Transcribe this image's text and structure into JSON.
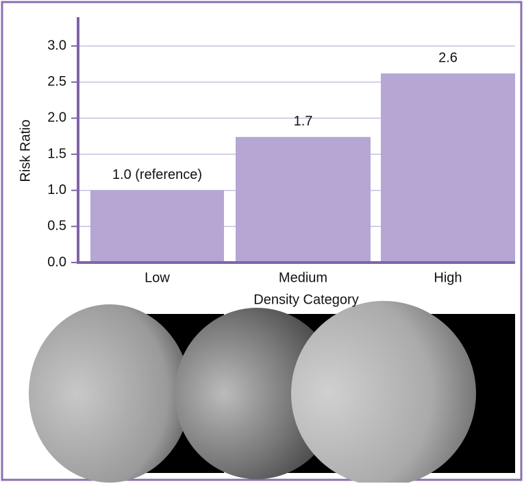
{
  "chart_data": {
    "type": "bar",
    "x_label": "Density Category",
    "y_label": "Risk Ratio",
    "categories": [
      "Low",
      "Medium",
      "High"
    ],
    "values": [
      1.0,
      1.74,
      2.62
    ],
    "value_labels": [
      "1.0 (reference)",
      "1.7",
      "2.6"
    ],
    "color": "#b5a6d3",
    "ylim": [
      0,
      3.4
    ],
    "yticks": [
      {
        "value": 0,
        "label": "0.0"
      },
      0.5,
      {
        "value": 1,
        "label": "1.0"
      },
      1.5,
      {
        "value": 2,
        "label": "2.0"
      },
      2.5,
      {
        "value": 3,
        "label": "3.0"
      }
    ],
    "grid": true
  }
}
